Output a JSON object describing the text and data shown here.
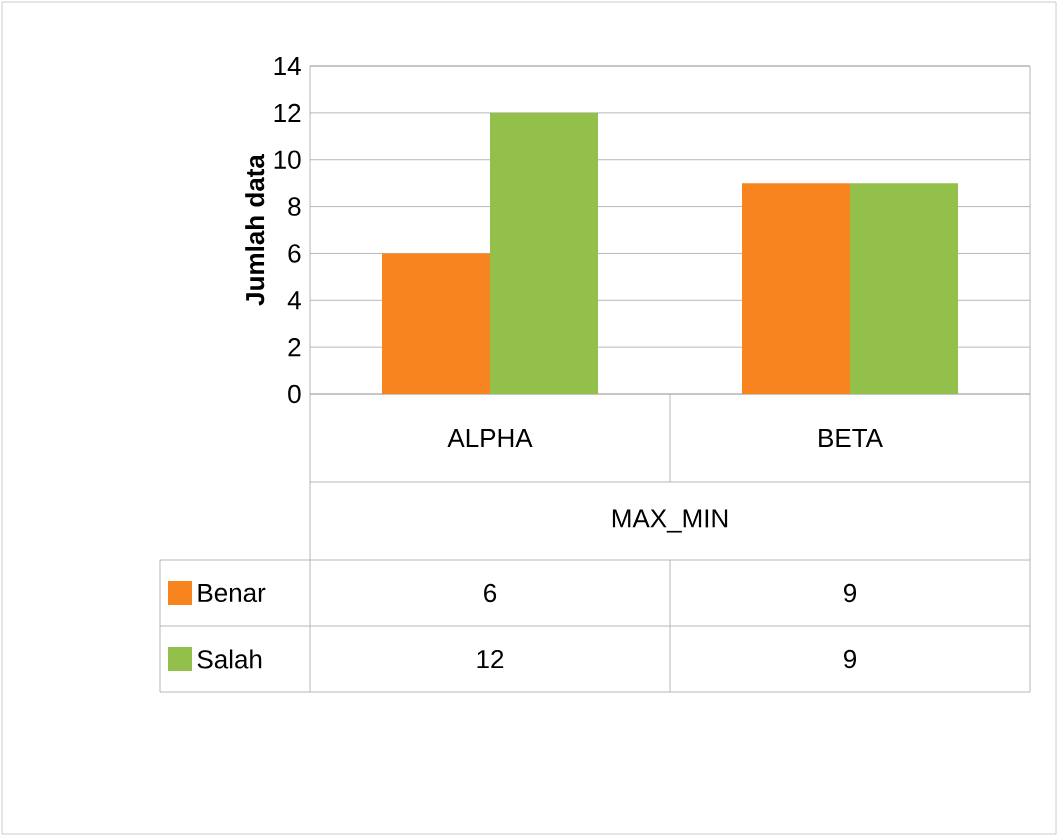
{
  "chart_data": {
    "type": "bar",
    "ylabel": "Jumlah data",
    "xlabel": "MAX_MIN",
    "categories": [
      "ALPHA",
      "BETA"
    ],
    "series": [
      {
        "name": "Benar",
        "color": "#f7841e",
        "values": [
          6,
          9
        ]
      },
      {
        "name": "Salah",
        "color": "#92c04a",
        "values": [
          12,
          9
        ]
      }
    ],
    "ylim": [
      0,
      14
    ],
    "yticks": [
      0,
      2,
      4,
      6,
      8,
      10,
      12,
      14
    ],
    "grid": "y",
    "legend": "bottom left",
    "data_labels": true
  }
}
